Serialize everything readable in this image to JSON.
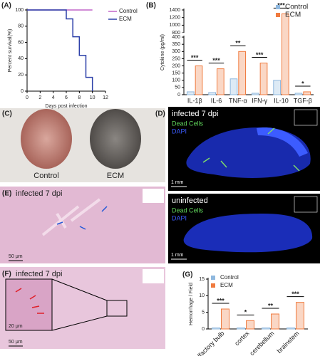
{
  "chart_data": [
    {
      "type": "line",
      "panel_label": "(A)",
      "xlabel": "Days post infection",
      "ylabel": "Percent survival(%)",
      "xlim": [
        0,
        12
      ],
      "xticks": [
        0,
        2,
        4,
        6,
        8,
        10,
        12
      ],
      "ylim": [
        0,
        100
      ],
      "yticks": [
        0,
        20,
        40,
        60,
        80,
        100
      ],
      "legend": "right",
      "series": [
        {
          "name": "Control",
          "color": "#c266c9",
          "x": [
            0,
            10
          ],
          "values": [
            100,
            100
          ]
        },
        {
          "name": "ECM",
          "color": "#2b3fa8",
          "x": [
            0,
            6,
            6,
            7,
            7,
            8,
            8,
            9,
            9,
            10,
            10
          ],
          "values": [
            100,
            100,
            89,
            89,
            67,
            67,
            44,
            44,
            17,
            17,
            0
          ]
        }
      ]
    },
    {
      "type": "bar",
      "panel_label": "(B)",
      "ylabel": "Cytokine (pg/ml)",
      "categories": [
        "IL-1β",
        "IL-6",
        "TNF-α",
        "IFN-γ",
        "IL-10",
        "TGF-β"
      ],
      "ylim": [
        0,
        1400
      ],
      "axis_break": [
        400,
        800
      ],
      "yticks": [
        0,
        50,
        100,
        150,
        200,
        250,
        300,
        350,
        400,
        800,
        1000,
        1200,
        1400
      ],
      "legend": "upper right",
      "series": [
        {
          "name": "Control",
          "color": "#8fb8de",
          "values": [
            20,
            15,
            110,
            10,
            100,
            10
          ]
        },
        {
          "name": "ECM",
          "color": "#f07b3f",
          "values": [
            200,
            180,
            300,
            220,
            1300,
            20
          ]
        }
      ],
      "annotations": [
        "***",
        "***",
        "**",
        "***",
        "***",
        "*"
      ]
    },
    {
      "type": "bar",
      "panel_label": "(G)",
      "ylabel": "Hemorrhage / Field",
      "categories": [
        "olfactory bulb",
        "cortex",
        "cerebellum",
        "brainstem"
      ],
      "ylim": [
        0,
        15
      ],
      "yticks": [
        0,
        5,
        10,
        15
      ],
      "xtick_rotation": 45,
      "legend": "upper left",
      "series": [
        {
          "name": "Control",
          "color": "#8fb8de",
          "values": [
            0.3,
            0.3,
            0.3,
            0.3
          ]
        },
        {
          "name": "ECM",
          "color": "#f07b3f",
          "values": [
            6,
            2.5,
            4.5,
            8
          ]
        }
      ],
      "annotations": [
        "***",
        "*",
        "**",
        "***"
      ]
    }
  ],
  "photos": {
    "C": {
      "label": "(C)",
      "captions": [
        "Control",
        "ECM"
      ]
    },
    "D": {
      "label": "(D)",
      "top": {
        "title": "infected 7 dpi",
        "legend": [
          "Dead Cells",
          "DAPI"
        ],
        "scale": "1 mm"
      },
      "bottom": {
        "title": "uninfected",
        "legend": [
          "Dead Cells",
          "DAPI"
        ],
        "scale": "1 mm"
      }
    },
    "E": {
      "label": "(E)",
      "title": "infected 7 dpi",
      "scale": "50 μm"
    },
    "F": {
      "label": "(F)",
      "title": "infected 7 dpi",
      "inset_scale": "20 μm",
      "scale": "50 μm"
    }
  }
}
